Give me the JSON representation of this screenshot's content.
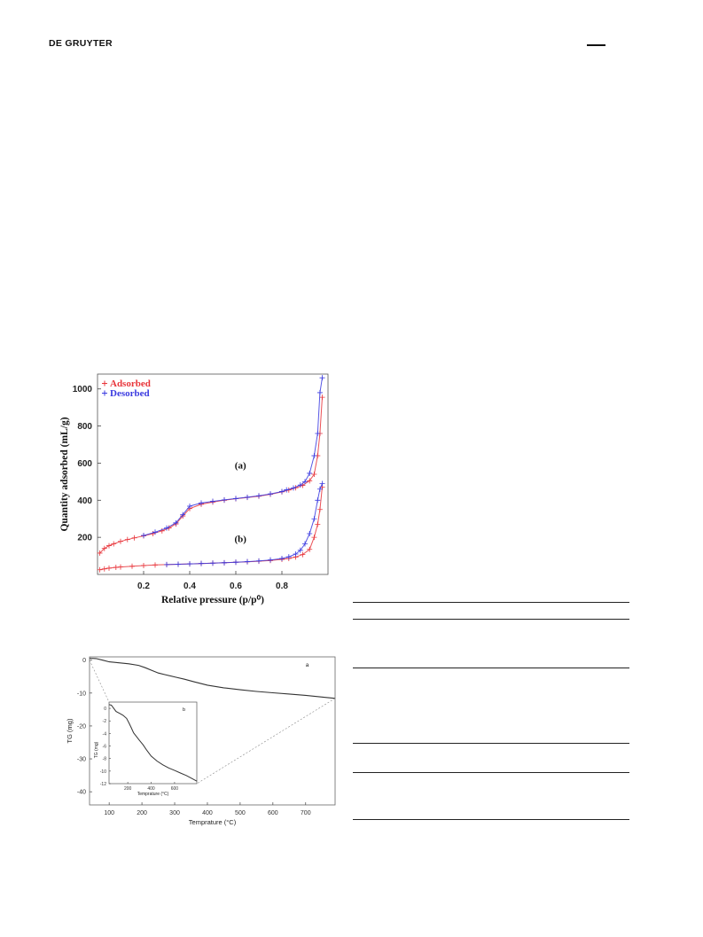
{
  "header": {
    "publisher": "DE GRUYTER"
  },
  "chart_data": [
    {
      "type": "line",
      "xlabel": "Relative pressure (p/p⁰)",
      "ylabel": "Quantity adsorbed (mL/g)",
      "xlim": [
        0,
        1.0
      ],
      "ylim": [
        0,
        1080
      ],
      "xticks": [
        0.2,
        0.4,
        0.6,
        0.8
      ],
      "yticks": [
        200,
        400,
        600,
        800,
        1000
      ],
      "legend_position": "top-left",
      "legend": [
        {
          "name": "Adsorbed",
          "marker": "+",
          "color": "#e8343a"
        },
        {
          "name": "Desorbed",
          "marker": "+",
          "color": "#3a3ae0"
        }
      ],
      "annotations": [
        {
          "text": "(a)",
          "x": 0.62,
          "y": 570
        },
        {
          "text": "(b)",
          "x": 0.62,
          "y": 175
        }
      ],
      "series": [
        {
          "name": "Adsorbed",
          "curve": "(a)",
          "color": "#e8343a",
          "x": [
            0.01,
            0.03,
            0.05,
            0.07,
            0.1,
            0.13,
            0.16,
            0.2,
            0.24,
            0.28,
            0.31,
            0.34,
            0.37,
            0.4,
            0.45,
            0.5,
            0.55,
            0.6,
            0.65,
            0.7,
            0.75,
            0.8,
            0.83,
            0.86,
            0.89,
            0.92,
            0.94,
            0.955,
            0.965,
            0.975
          ],
          "y": [
            115,
            140,
            155,
            165,
            178,
            188,
            197,
            208,
            220,
            235,
            250,
            272,
            315,
            355,
            378,
            390,
            400,
            408,
            415,
            422,
            432,
            445,
            455,
            467,
            480,
            505,
            540,
            640,
            760,
            955
          ]
        },
        {
          "name": "Desorbed",
          "curve": "(a)",
          "color": "#3a3ae0",
          "x": [
            0.975,
            0.965,
            0.955,
            0.94,
            0.92,
            0.9,
            0.88,
            0.85,
            0.82,
            0.8,
            0.75,
            0.7,
            0.65,
            0.6,
            0.55,
            0.5,
            0.45,
            0.4,
            0.37,
            0.34,
            0.3,
            0.25,
            0.2
          ],
          "y": [
            1060,
            980,
            760,
            640,
            545,
            500,
            482,
            466,
            456,
            447,
            434,
            424,
            416,
            409,
            402,
            394,
            385,
            368,
            322,
            278,
            250,
            228,
            210
          ]
        },
        {
          "name": "Adsorbed",
          "curve": "(b)",
          "color": "#e8343a",
          "x": [
            0.01,
            0.03,
            0.05,
            0.08,
            0.1,
            0.15,
            0.2,
            0.25,
            0.3,
            0.35,
            0.4,
            0.45,
            0.5,
            0.55,
            0.6,
            0.65,
            0.7,
            0.75,
            0.8,
            0.83,
            0.86,
            0.89,
            0.92,
            0.94,
            0.955,
            0.965,
            0.975
          ],
          "y": [
            25,
            30,
            34,
            38,
            40,
            44,
            48,
            51,
            53,
            55,
            57,
            59,
            61,
            63,
            66,
            68,
            71,
            75,
            81,
            86,
            94,
            107,
            135,
            200,
            270,
            350,
            470
          ]
        },
        {
          "name": "Desorbed",
          "curve": "(b)",
          "color": "#3a3ae0",
          "x": [
            0.975,
            0.965,
            0.955,
            0.94,
            0.92,
            0.9,
            0.88,
            0.86,
            0.83,
            0.8,
            0.75,
            0.7,
            0.65,
            0.6,
            0.55,
            0.5,
            0.45,
            0.4,
            0.35,
            0.3
          ],
          "y": [
            490,
            460,
            400,
            300,
            220,
            165,
            130,
            110,
            95,
            86,
            78,
            73,
            69,
            66,
            63,
            61,
            59,
            57,
            55,
            53
          ]
        }
      ]
    },
    {
      "type": "line",
      "xlabel": "Temprature (°C)",
      "ylabel": "TG (mg)",
      "xlim": [
        40,
        790
      ],
      "ylim": [
        -44,
        1
      ],
      "xticks": [
        100,
        200,
        300,
        400,
        500,
        600,
        700
      ],
      "yticks": [
        0,
        -10,
        -20,
        -30,
        -40
      ],
      "annotations": [
        {
          "text": "a"
        }
      ],
      "series": [
        {
          "name": "",
          "x": [
            40,
            60,
            80,
            100,
            130,
            160,
            190,
            210,
            230,
            250,
            270,
            300,
            330,
            360,
            400,
            450,
            500,
            550,
            600,
            650,
            700,
            750,
            790
          ],
          "y": [
            0.6,
            0.5,
            0,
            -0.5,
            -0.8,
            -1.1,
            -1.6,
            -2.3,
            -3.1,
            -3.9,
            -4.4,
            -5.1,
            -5.8,
            -6.6,
            -7.6,
            -8.4,
            -9.0,
            -9.5,
            -9.9,
            -10.3,
            -10.7,
            -11.2,
            -11.6
          ]
        }
      ],
      "inset": {
        "label": "b",
        "xlabel": "Temprature (°C)",
        "ylabel": "TG (mg)",
        "xlim": [
          40,
          790
        ],
        "ylim": [
          -12,
          1
        ],
        "xticks": [
          200,
          400,
          600
        ],
        "yticks": [
          0,
          -2,
          -4,
          -6,
          -8,
          -10,
          -12
        ],
        "series": [
          {
            "name": "",
            "x": [
              40,
              60,
              80,
              100,
              130,
              160,
              190,
              210,
              230,
              250,
              270,
              300,
              330,
              360,
              400,
              450,
              500,
              550,
              600,
              650,
              700,
              750,
              790
            ],
            "y": [
              0.6,
              0.5,
              0,
              -0.5,
              -0.8,
              -1.1,
              -1.6,
              -2.3,
              -3.1,
              -3.9,
              -4.4,
              -5.1,
              -5.8,
              -6.6,
              -7.6,
              -8.4,
              -9.0,
              -9.5,
              -9.9,
              -10.3,
              -10.7,
              -11.2,
              -11.6
            ]
          }
        ]
      }
    }
  ]
}
